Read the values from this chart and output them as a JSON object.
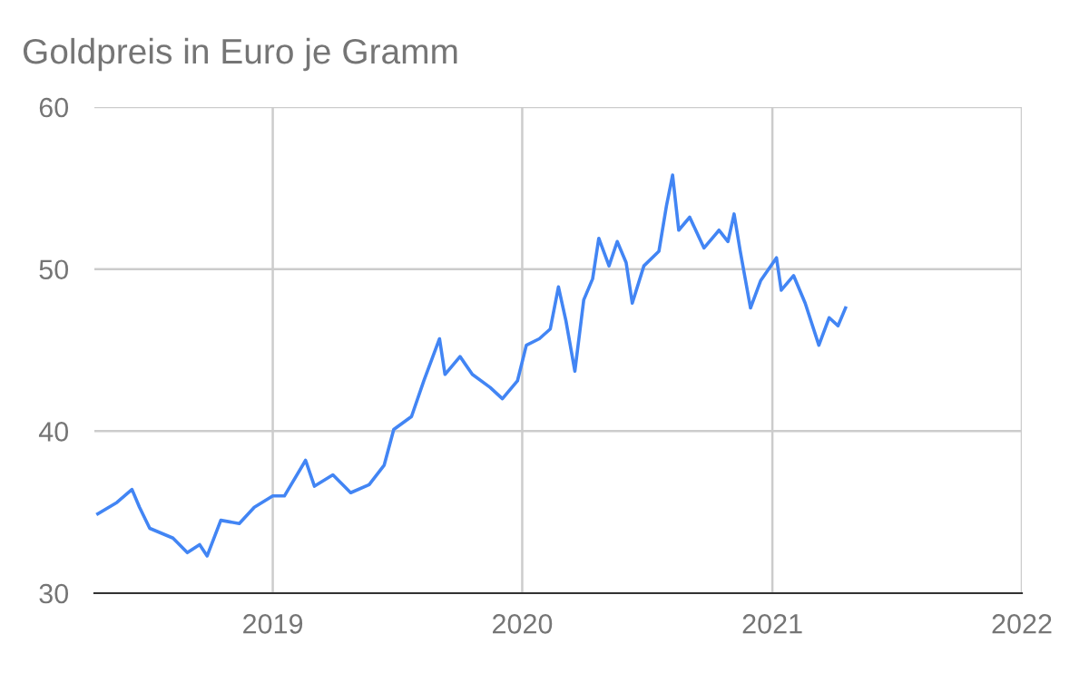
{
  "chart_data": {
    "type": "line",
    "title": "Goldpreis in Euro je Gramm",
    "x": [
      "2018-04-20",
      "2018-05-18",
      "2018-06-09",
      "2018-06-20",
      "2018-07-05",
      "2018-08-08",
      "2018-08-29",
      "2018-09-16",
      "2018-09-27",
      "2018-10-17",
      "2018-11-13",
      "2018-12-05",
      "2019-01-01",
      "2019-01-18",
      "2019-02-18",
      "2019-03-03",
      "2019-03-30",
      "2019-04-25",
      "2019-05-22",
      "2019-06-13",
      "2019-06-27",
      "2019-07-23",
      "2019-08-10",
      "2019-09-02",
      "2019-09-10",
      "2019-10-02",
      "2019-10-20",
      "2019-11-15",
      "2019-12-03",
      "2019-12-25",
      "2020-01-07",
      "2020-01-26",
      "2020-02-11",
      "2020-02-23",
      "2020-03-05",
      "2020-03-18",
      "2020-03-31",
      "2020-04-13",
      "2020-04-22",
      "2020-05-07",
      "2020-05-19",
      "2020-06-01",
      "2020-06-10",
      "2020-06-27",
      "2020-07-19",
      "2020-07-30",
      "2020-08-08",
      "2020-08-17",
      "2020-09-02",
      "2020-09-23",
      "2020-10-15",
      "2020-10-28",
      "2020-11-06",
      "2020-11-15",
      "2020-11-30",
      "2020-12-15",
      "2021-01-07",
      "2021-01-14",
      "2021-02-01",
      "2021-02-18",
      "2021-03-10",
      "2021-03-25",
      "2021-04-07",
      "2021-04-18"
    ],
    "series": [
      {
        "color": "#4285f4",
        "values": [
          34.9,
          35.6,
          36.4,
          35.3,
          34.0,
          33.4,
          32.5,
          33.0,
          32.3,
          34.5,
          34.3,
          35.3,
          36.0,
          36.0,
          38.2,
          36.6,
          37.3,
          36.2,
          36.7,
          37.9,
          40.1,
          40.9,
          43.1,
          45.7,
          43.5,
          44.6,
          43.5,
          42.7,
          42.0,
          43.1,
          45.3,
          45.7,
          46.3,
          48.9,
          46.8,
          43.7,
          48.1,
          49.4,
          51.9,
          50.2,
          51.7,
          50.4,
          47.9,
          50.2,
          51.1,
          53.9,
          55.8,
          52.4,
          53.2,
          51.3,
          52.4,
          51.7,
          53.4,
          51.1,
          47.6,
          49.3,
          50.7,
          48.7,
          49.6,
          47.9,
          45.3,
          47.0,
          46.5,
          47.6
        ]
      }
    ],
    "xlim": [
      "2018-04-15",
      "2022-01-01"
    ],
    "xticks": [
      {
        "value": "2019-01-01",
        "label": "2019"
      },
      {
        "value": "2020-01-01",
        "label": "2020"
      },
      {
        "value": "2021-01-01",
        "label": "2021"
      },
      {
        "value": "2022-01-01",
        "label": "2022"
      }
    ],
    "ylim": [
      30,
      60
    ],
    "yticks": [
      30,
      40,
      50,
      60
    ],
    "grid": true,
    "marker": "none",
    "line_style": "solid"
  }
}
